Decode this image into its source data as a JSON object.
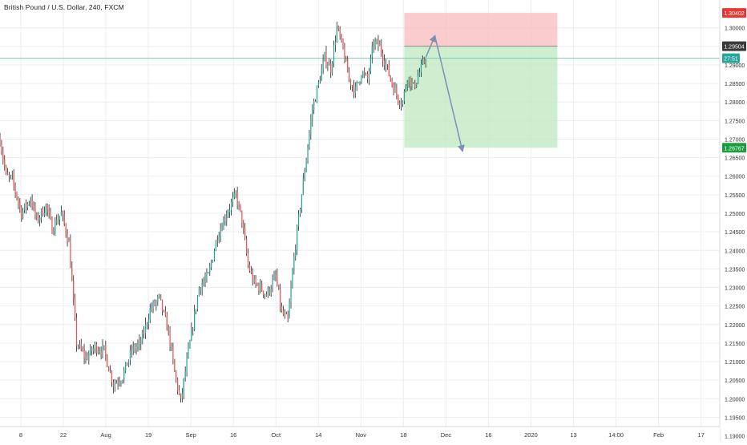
{
  "title": "British Pound / U.S. Dollar, 240, FXCM",
  "colors": {
    "up": "#26a69a",
    "down": "#ef5350",
    "wick": "#222222",
    "grid": "#e9edf2",
    "stop_zone": "#f8b7b7",
    "target_zone": "#bde8c0",
    "arrow": "#7d8fb3",
    "current_line": "#7fc6b6"
  },
  "chart_data": {
    "type": "candlestick",
    "symbol": "GBPUSD",
    "timeframe": "240",
    "ylim": [
      1.1925,
      1.3075
    ],
    "y_ticks": [
      "1.30000",
      "1.29500",
      "1.29000",
      "1.28500",
      "1.28000",
      "1.27500",
      "1.27000",
      "1.26500",
      "1.26000",
      "1.25500",
      "1.25000",
      "1.24500",
      "1.24000",
      "1.23500",
      "1.23000",
      "1.22500",
      "1.22000",
      "1.21500",
      "1.21000",
      "1.20500",
      "1.20000",
      "1.19500",
      "1.19000"
    ],
    "x_ticks": [
      "8",
      "22",
      "Aug",
      "19",
      "Sep",
      "16",
      "Oct",
      "14",
      "Nov",
      "18",
      "Dec",
      "16",
      "2020",
      "13",
      "14:00",
      "Feb",
      "17"
    ],
    "price_path": [
      {
        "t": 0,
        "p": 1.27
      },
      {
        "t": 4,
        "p": 1.26
      },
      {
        "t": 8,
        "p": 1.259
      },
      {
        "t": 14,
        "p": 1.25
      },
      {
        "t": 20,
        "p": 1.254
      },
      {
        "t": 24,
        "p": 1.248
      },
      {
        "t": 30,
        "p": 1.252
      },
      {
        "t": 34,
        "p": 1.246
      },
      {
        "t": 40,
        "p": 1.25
      },
      {
        "t": 45,
        "p": 1.242
      },
      {
        "t": 50,
        "p": 1.215
      },
      {
        "t": 56,
        "p": 1.211
      },
      {
        "t": 62,
        "p": 1.214
      },
      {
        "t": 68,
        "p": 1.213
      },
      {
        "t": 74,
        "p": 1.204
      },
      {
        "t": 80,
        "p": 1.206
      },
      {
        "t": 86,
        "p": 1.213
      },
      {
        "t": 92,
        "p": 1.215
      },
      {
        "t": 98,
        "p": 1.224
      },
      {
        "t": 104,
        "p": 1.227
      },
      {
        "t": 110,
        "p": 1.218
      },
      {
        "t": 114,
        "p": 1.207
      },
      {
        "t": 118,
        "p": 1.199
      },
      {
        "t": 122,
        "p": 1.21
      },
      {
        "t": 126,
        "p": 1.22
      },
      {
        "t": 130,
        "p": 1.23
      },
      {
        "t": 136,
        "p": 1.233
      },
      {
        "t": 142,
        "p": 1.244
      },
      {
        "t": 148,
        "p": 1.25
      },
      {
        "t": 154,
        "p": 1.255
      },
      {
        "t": 158,
        "p": 1.248
      },
      {
        "t": 162,
        "p": 1.236
      },
      {
        "t": 166,
        "p": 1.231
      },
      {
        "t": 170,
        "p": 1.23
      },
      {
        "t": 174,
        "p": 1.228
      },
      {
        "t": 180,
        "p": 1.233
      },
      {
        "t": 184,
        "p": 1.223
      },
      {
        "t": 188,
        "p": 1.221
      },
      {
        "t": 192,
        "p": 1.238
      },
      {
        "t": 196,
        "p": 1.252
      },
      {
        "t": 200,
        "p": 1.265
      },
      {
        "t": 204,
        "p": 1.278
      },
      {
        "t": 208,
        "p": 1.285
      },
      {
        "t": 212,
        "p": 1.292
      },
      {
        "t": 216,
        "p": 1.289
      },
      {
        "t": 220,
        "p": 1.3
      },
      {
        "t": 224,
        "p": 1.294
      },
      {
        "t": 228,
        "p": 1.286
      },
      {
        "t": 232,
        "p": 1.283
      },
      {
        "t": 236,
        "p": 1.288
      },
      {
        "t": 240,
        "p": 1.286
      },
      {
        "t": 244,
        "p": 1.296
      },
      {
        "t": 248,
        "p": 1.295
      },
      {
        "t": 252,
        "p": 1.29
      },
      {
        "t": 256,
        "p": 1.285
      },
      {
        "t": 260,
        "p": 1.281
      },
      {
        "t": 263,
        "p": 1.28
      },
      {
        "t": 266,
        "p": 1.287
      },
      {
        "t": 270,
        "p": 1.284
      },
      {
        "t": 274,
        "p": 1.288
      },
      {
        "t": 278,
        "p": 1.292
      }
    ],
    "projection": [
      {
        "t": 278,
        "p": 1.292
      },
      {
        "t": 284,
        "p": 1.2978
      },
      {
        "t": 302,
        "p": 1.2668
      }
    ],
    "position_tool": {
      "entry": 1.29504,
      "stop": 1.30402,
      "target": 1.26767,
      "t_start": 264,
      "t_end": 364
    },
    "current_price": {
      "value": 1.2918,
      "countdown": "27:51"
    },
    "price_tags": [
      {
        "label": "1.30402",
        "value": 1.30402,
        "bg": "#e53935"
      },
      {
        "label": "1.29504",
        "value": 1.29504,
        "bg": "#3a3a3a"
      },
      {
        "label": "1.26767",
        "value": 1.26767,
        "bg": "#1b9e3e"
      }
    ]
  }
}
